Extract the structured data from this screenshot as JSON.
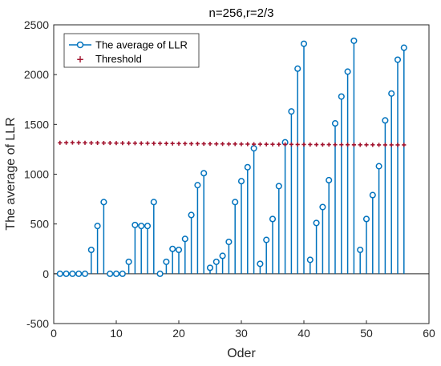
{
  "chart_data": {
    "type": "stem",
    "title": "n=256,r=2/3",
    "xlabel": "Oder",
    "ylabel": "The average of LLR",
    "xlim": [
      0,
      60
    ],
    "ylim": [
      -500,
      2500
    ],
    "xticks": [
      0,
      10,
      20,
      30,
      40,
      50,
      60
    ],
    "yticks": [
      -500,
      0,
      500,
      1000,
      1500,
      2000,
      2500
    ],
    "grid": false,
    "legend_position": "top-left",
    "colors": {
      "stem": "#0072BD",
      "threshold": "#A2142F"
    },
    "series": [
      {
        "name": "The average of LLR",
        "style": "stem",
        "x": [
          1,
          2,
          3,
          4,
          5,
          6,
          7,
          8,
          9,
          10,
          11,
          12,
          13,
          14,
          15,
          16,
          17,
          18,
          19,
          20,
          21,
          22,
          23,
          24,
          25,
          26,
          27,
          28,
          29,
          30,
          31,
          32,
          33,
          34,
          35,
          36,
          37,
          38,
          39,
          40,
          41,
          42,
          43,
          44,
          45,
          46,
          47,
          48,
          49,
          50,
          51,
          52,
          53,
          54,
          55,
          56
        ],
        "values": [
          0,
          0,
          0,
          0,
          0,
          240,
          480,
          720,
          0,
          0,
          0,
          120,
          490,
          480,
          480,
          720,
          0,
          120,
          250,
          240,
          350,
          590,
          890,
          1010,
          60,
          120,
          180,
          320,
          720,
          930,
          1070,
          1260,
          100,
          340,
          550,
          880,
          1320,
          1630,
          2060,
          2310,
          140,
          510,
          670,
          940,
          1510,
          1780,
          2030,
          2340,
          240,
          550,
          790,
          1080,
          1540,
          1810,
          2150,
          2270
        ]
      },
      {
        "name": "Threshold",
        "style": "markers",
        "x": [
          1,
          2,
          3,
          4,
          5,
          6,
          7,
          8,
          9,
          10,
          11,
          12,
          13,
          14,
          15,
          16,
          17,
          18,
          19,
          20,
          21,
          22,
          23,
          24,
          25,
          26,
          27,
          28,
          29,
          30,
          31,
          32,
          33,
          34,
          35,
          36,
          37,
          38,
          39,
          40,
          41,
          42,
          43,
          44,
          45,
          46,
          47,
          48,
          49,
          50,
          51,
          52,
          53,
          54,
          55,
          56
        ],
        "values": [
          1315,
          1316,
          1317,
          1316,
          1315,
          1314,
          1314,
          1313,
          1313,
          1312,
          1312,
          1311,
          1311,
          1310,
          1310,
          1309,
          1309,
          1308,
          1308,
          1307,
          1307,
          1306,
          1306,
          1305,
          1305,
          1304,
          1304,
          1303,
          1303,
          1302,
          1302,
          1301,
          1301,
          1300,
          1300,
          1299,
          1299,
          1299,
          1298,
          1298,
          1298,
          1297,
          1297,
          1297,
          1296,
          1296,
          1296,
          1295,
          1295,
          1295,
          1295,
          1294,
          1294,
          1294,
          1294,
          1294
        ]
      }
    ]
  }
}
